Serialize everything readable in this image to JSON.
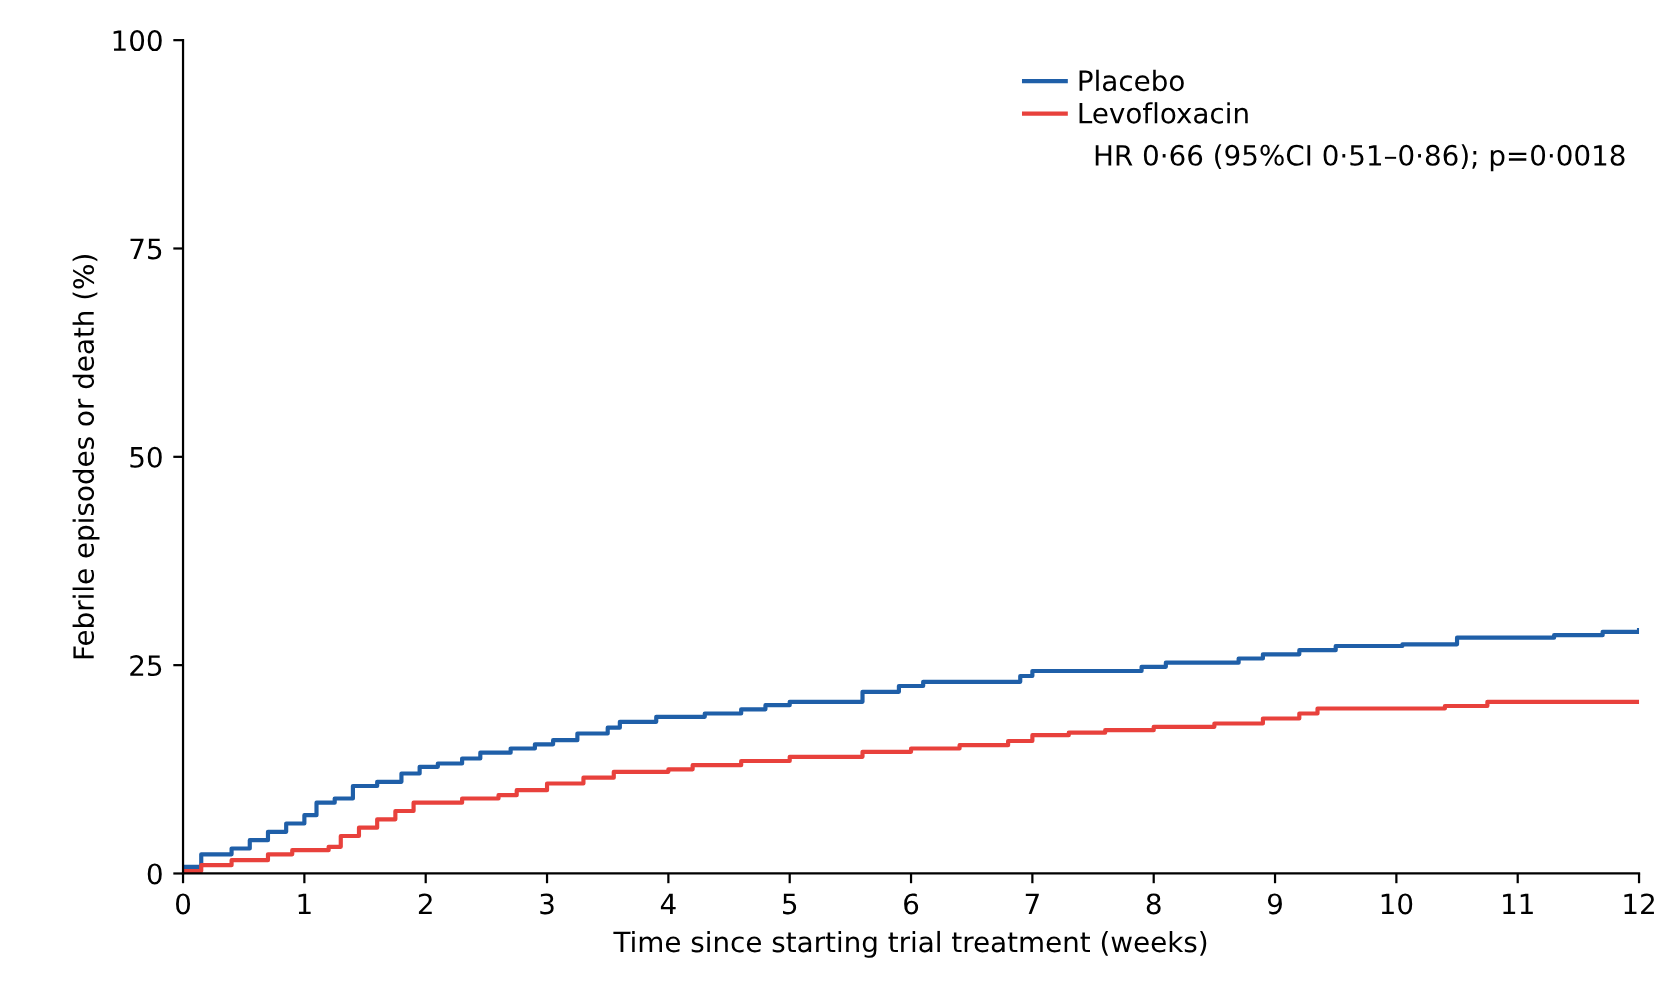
{
  "chart_data": {
    "type": "step",
    "xlabel": "Time since starting trial treatment (weeks)",
    "ylabel": "Febrile episodes or death (%)",
    "xlim": [
      0,
      12
    ],
    "xticks": [
      0,
      1,
      2,
      3,
      4,
      5,
      6,
      7,
      8,
      9,
      10,
      11,
      12
    ],
    "ylim": [
      0,
      100
    ],
    "yticks": [
      0,
      25,
      50,
      75,
      100
    ],
    "grid": false,
    "legend": "top right",
    "annotations": [
      "HR 0·66 (95%CI 0·51–0·86); p=0·0018"
    ],
    "series": [
      {
        "name": "Placebo",
        "color": "#1f5fa8",
        "x": [
          0,
          0.15,
          0.4,
          0.55,
          0.7,
          0.85,
          1,
          1.1,
          1.25,
          1.4,
          1.6,
          1.8,
          1.95,
          2.1,
          2.3,
          2.45,
          2.7,
          2.9,
          3.05,
          3.25,
          3.5,
          3.6,
          3.9,
          4.3,
          4.6,
          4.8,
          5,
          5.6,
          5.9,
          6.1,
          6.9,
          7,
          7.9,
          8.1,
          8.7,
          8.9,
          9.2,
          9.5,
          10.05,
          10.5,
          11.3,
          11.7,
          12
        ],
        "values": [
          0.8,
          2.3,
          3,
          4,
          5,
          6,
          7,
          8.5,
          9,
          10.5,
          11,
          12,
          12.8,
          13.2,
          13.8,
          14.5,
          15,
          15.5,
          16,
          16.8,
          17.5,
          18.2,
          18.8,
          19.2,
          19.7,
          20.2,
          20.6,
          21.8,
          22.5,
          23,
          23.7,
          24.3,
          24.8,
          25.3,
          25.8,
          26.3,
          26.8,
          27.3,
          27.5,
          28.3,
          28.6,
          29,
          29.2
        ]
      },
      {
        "name": "Levofloxacin",
        "color": "#e8413c",
        "x": [
          0,
          0.15,
          0.4,
          0.7,
          0.9,
          1.2,
          1.3,
          1.45,
          1.6,
          1.75,
          1.9,
          2.3,
          2.6,
          2.75,
          3,
          3.3,
          3.55,
          4,
          4.2,
          4.6,
          5,
          5.6,
          6,
          6.4,
          6.8,
          7,
          7.3,
          7.6,
          8,
          8.5,
          8.9,
          9.2,
          9.35,
          10.4,
          10.75,
          12
        ],
        "values": [
          0.3,
          1,
          1.6,
          2.3,
          2.8,
          3.2,
          4.5,
          5.5,
          6.5,
          7.5,
          8.5,
          9,
          9.4,
          10,
          10.8,
          11.5,
          12.2,
          12.5,
          13,
          13.5,
          14,
          14.6,
          15,
          15.4,
          15.9,
          16.6,
          16.9,
          17.2,
          17.6,
          18,
          18.6,
          19.2,
          19.8,
          20.1,
          20.6,
          20.6
        ]
      }
    ]
  }
}
